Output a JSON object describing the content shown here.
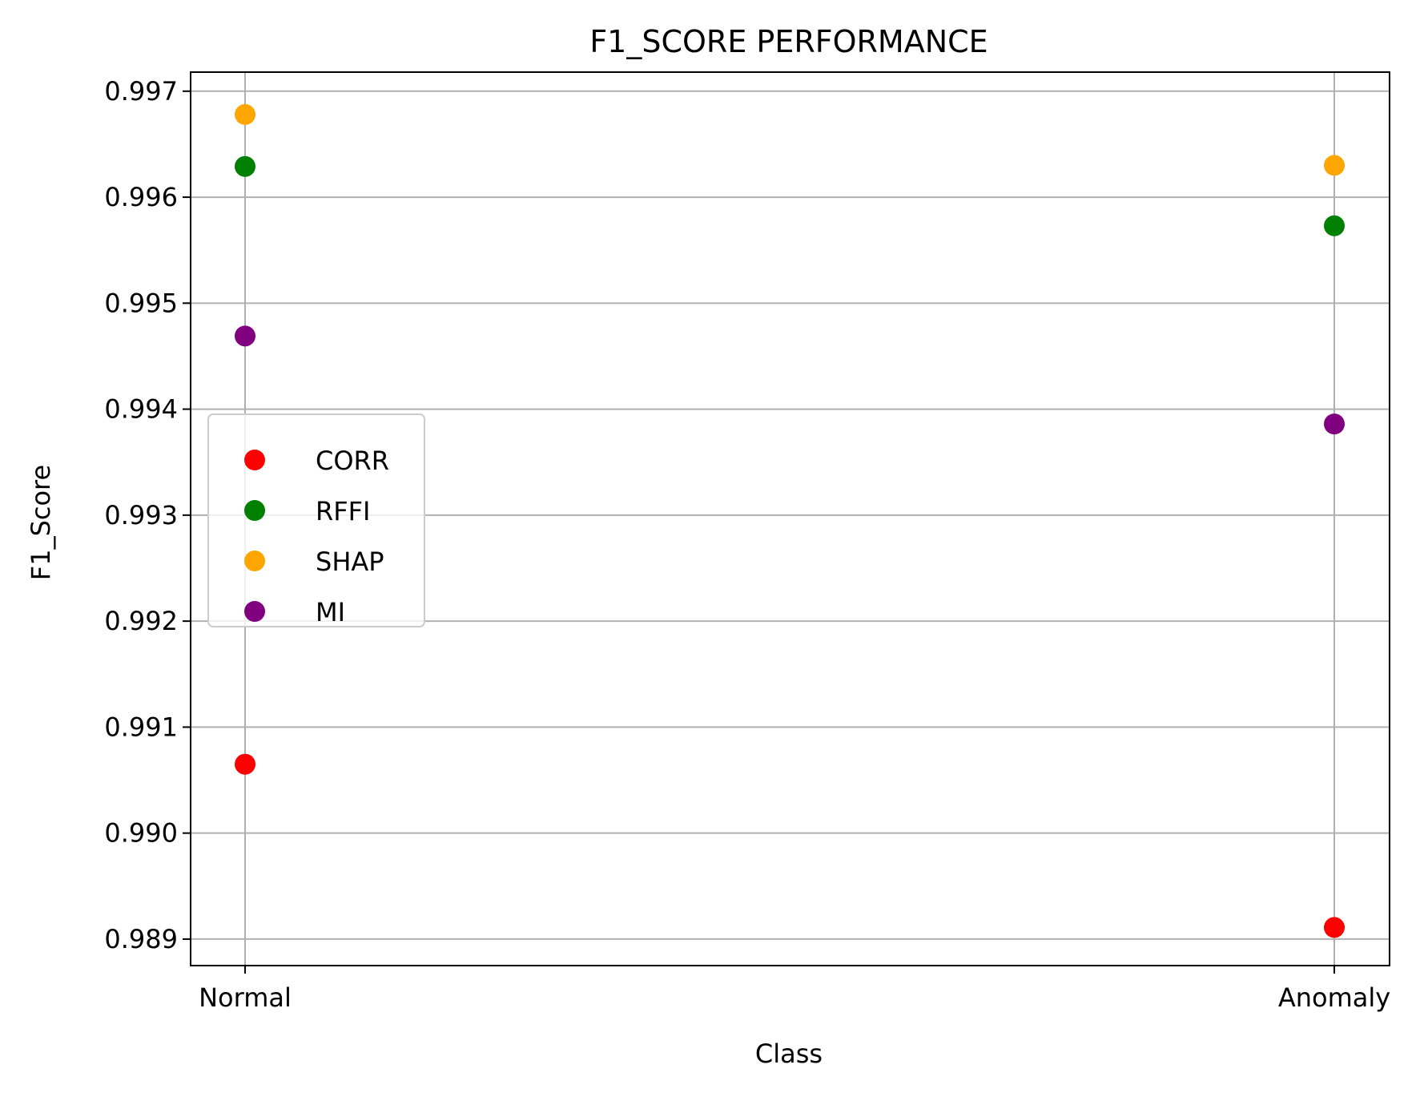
{
  "chart_data": {
    "type": "scatter",
    "title": "F1_SCORE PERFORMANCE",
    "xlabel": "Class",
    "ylabel": "F1_Score",
    "categories": [
      "Normal",
      "Anomaly"
    ],
    "ylim": [
      0.98875,
      0.99718
    ],
    "yticks": [
      0.989,
      0.99,
      0.991,
      0.992,
      0.993,
      0.994,
      0.995,
      0.996,
      0.997
    ],
    "ytick_labels": [
      "0.989",
      "0.990",
      "0.991",
      "0.992",
      "0.993",
      "0.994",
      "0.995",
      "0.996",
      "0.997"
    ],
    "grid": true,
    "legend_position": "center-left",
    "series": [
      {
        "name": "CORR",
        "color": "#ff0000",
        "values": [
          0.99065,
          0.98911
        ]
      },
      {
        "name": "RFFI",
        "color": "#008000",
        "values": [
          0.99629,
          0.99573
        ]
      },
      {
        "name": "SHAP",
        "color": "#ffa500",
        "values": [
          0.99678,
          0.9963
        ]
      },
      {
        "name": "MI",
        "color": "#800080",
        "values": [
          0.99469,
          0.99386
        ]
      }
    ]
  }
}
